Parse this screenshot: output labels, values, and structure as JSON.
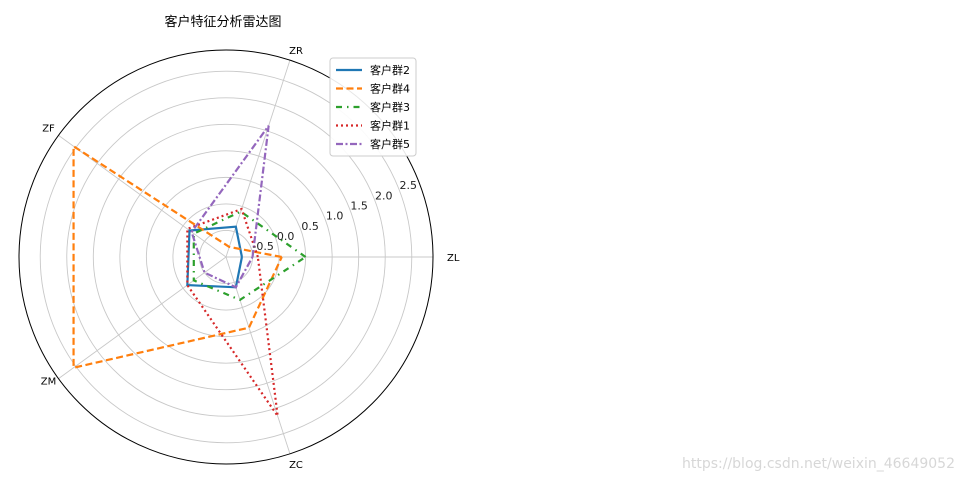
{
  "chart_data": {
    "type": "radar",
    "title": "客户特征分析雷达图",
    "axes": [
      "ZL",
      "ZR",
      "ZF",
      "ZM",
      "ZC"
    ],
    "rlim": [
      -1,
      2.9
    ],
    "rticks": [
      -0.5,
      0.0,
      0.5,
      1.0,
      1.5,
      2.0,
      2.5
    ],
    "rtick_labels": [
      "-0.5",
      "0.0",
      "0.5",
      "1.0",
      "1.5",
      "2.0",
      "2.5"
    ],
    "grid": true,
    "legend_position": "top-right",
    "series": [
      {
        "name": "客户群2",
        "values": [
          -0.7,
          -0.4,
          -0.15,
          -0.1,
          -0.4
        ],
        "color": "#1f77b4",
        "dash": "solid"
      },
      {
        "name": "客户群4",
        "values": [
          0.05,
          -0.8,
          2.55,
          2.55,
          0.4
        ],
        "color": "#ff7f0e",
        "dash": "dashed"
      },
      {
        "name": "客户群3",
        "values": [
          0.5,
          -0.1,
          -0.25,
          -0.25,
          -0.15
        ],
        "color": "#2ca02c",
        "dash": "dashdot-sparse"
      },
      {
        "name": "客户群1",
        "values": [
          -0.4,
          -0.05,
          -0.1,
          -0.1,
          2.15
        ],
        "color": "#d62728",
        "dash": "dotted"
      },
      {
        "name": "客户群5",
        "values": [
          -0.5,
          1.6,
          -0.2,
          -0.5,
          -0.4
        ],
        "color": "#9467bd",
        "dash": "dashdot"
      }
    ]
  },
  "watermark": "https://blog.csdn.net/weixin_46649052"
}
